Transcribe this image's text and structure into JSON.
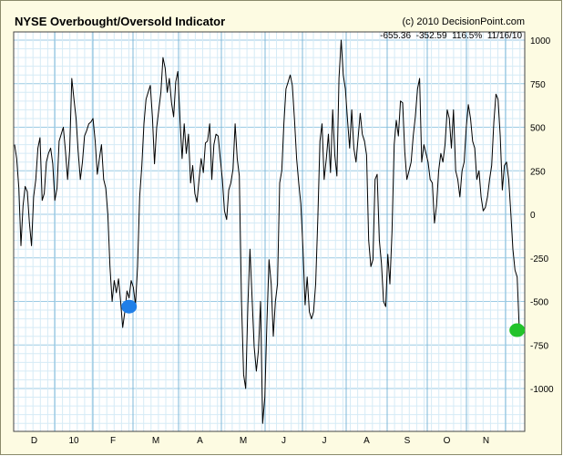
{
  "chart_data": {
    "type": "line",
    "title": "NYSE Overbought/Oversold Indicator",
    "source": "(c) 2010 DecisionPoint.com",
    "readout": "-655.36  -352.59  116.5%  11/16/10",
    "x_tick_labels": [
      "D",
      "10",
      "F",
      "M",
      "A",
      "M",
      "J",
      "J",
      "A",
      "S",
      "O",
      "N"
    ],
    "ylim": [
      -1200,
      1000
    ],
    "y_ticks": [
      1000,
      750,
      500,
      250,
      0,
      -250,
      -500,
      -750,
      -1000
    ],
    "grid": true,
    "series": [
      {
        "color": "#000000",
        "values": [
          400,
          320,
          150,
          -180,
          50,
          160,
          130,
          -50,
          -180,
          100,
          200,
          380,
          440,
          80,
          120,
          300,
          350,
          380,
          290,
          80,
          150,
          420,
          460,
          500,
          360,
          200,
          370,
          780,
          660,
          550,
          360,
          200,
          300,
          450,
          480,
          520,
          530,
          550,
          420,
          230,
          320,
          400,
          200,
          150,
          0,
          -300,
          -500,
          -380,
          -450,
          -370,
          -500,
          -650,
          -560,
          -440,
          -480,
          -380,
          -420,
          -520,
          -300,
          100,
          280,
          520,
          660,
          700,
          740,
          560,
          290,
          500,
          600,
          700,
          900,
          840,
          700,
          780,
          640,
          560,
          760,
          820,
          540,
          320,
          520,
          350,
          460,
          180,
          280,
          120,
          70,
          200,
          320,
          240,
          410,
          420,
          520,
          200,
          400,
          460,
          450,
          320,
          200,
          20,
          -30,
          140,
          180,
          260,
          520,
          320,
          220,
          -500,
          -920,
          -1000,
          -520,
          -200,
          -480,
          -760,
          -900,
          -780,
          -500,
          -1200,
          -1050,
          -620,
          -260,
          -400,
          -700,
          -500,
          -400,
          180,
          250,
          520,
          720,
          760,
          800,
          740,
          540,
          320,
          180,
          60,
          -200,
          -520,
          -360,
          -560,
          -600,
          -560,
          -400,
          -20,
          420,
          520,
          200,
          320,
          460,
          240,
          600,
          340,
          220,
          780,
          1000,
          800,
          720,
          540,
          380,
          600,
          380,
          300,
          440,
          580,
          460,
          420,
          340,
          -150,
          -300,
          -260,
          200,
          230,
          -150,
          -280,
          -500,
          -530,
          -230,
          -400,
          -100,
          400,
          540,
          450,
          650,
          640,
          360,
          200,
          250,
          300,
          450,
          560,
          720,
          780,
          300,
          400,
          350,
          300,
          200,
          180,
          -50,
          50,
          250,
          350,
          300,
          400,
          600,
          550,
          380,
          600,
          250,
          200,
          100,
          250,
          300,
          500,
          630,
          550,
          420,
          380,
          200,
          250,
          100,
          20,
          40,
          100,
          200,
          280,
          530,
          690,
          660,
          450,
          140,
          280,
          300,
          200,
          10,
          -200,
          -320,
          -360,
          -660
        ]
      }
    ],
    "markers": [
      {
        "index": 54,
        "value": -530,
        "color": "#1f7fe8"
      },
      {
        "index": 237,
        "value": -665,
        "color": "#22c32a"
      }
    ]
  }
}
